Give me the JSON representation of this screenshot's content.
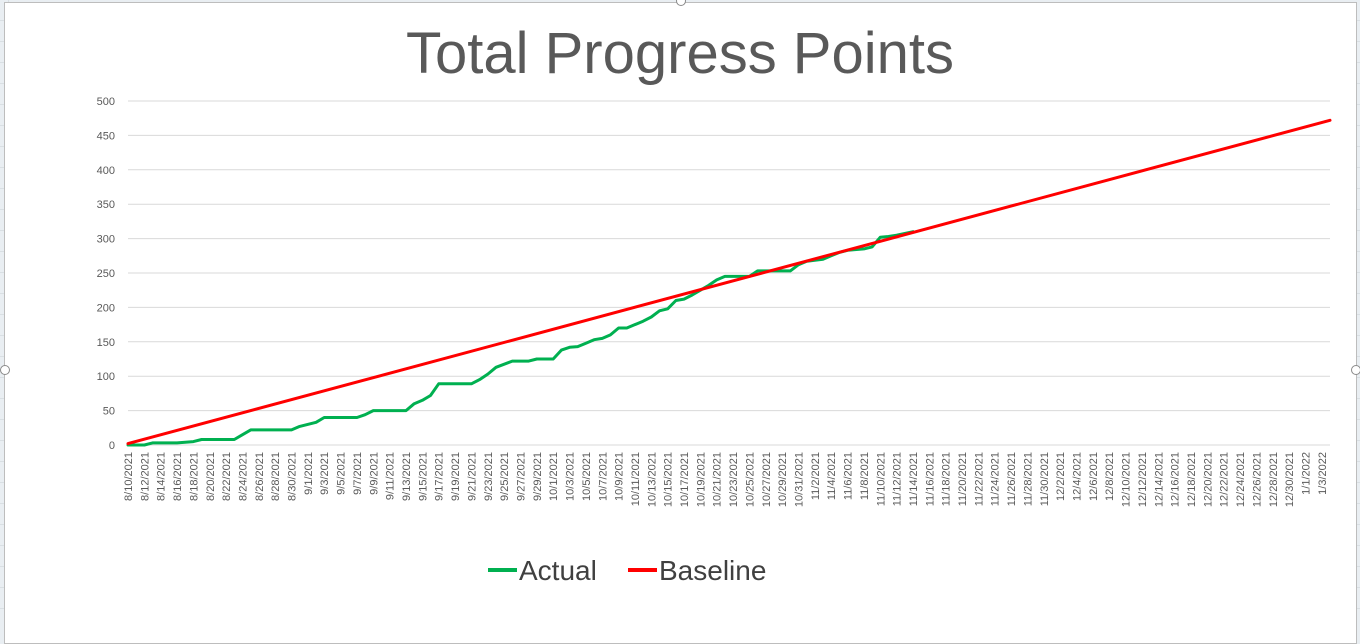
{
  "chart_data": {
    "type": "line",
    "title": "Total Progress Points",
    "xlabel": "",
    "ylabel": "",
    "ylim": [
      0,
      500
    ],
    "yticks": [
      0,
      50,
      100,
      150,
      200,
      250,
      300,
      350,
      400,
      450,
      500
    ],
    "grid": true,
    "legend_position": "bottom",
    "x_start": "8/10/2021",
    "x_end": "1/4/2022",
    "x_tick_labels": [
      "8/10/2021",
      "8/12/2021",
      "8/14/2021",
      "8/16/2021",
      "8/18/2021",
      "8/20/2021",
      "8/22/2021",
      "8/24/2021",
      "8/26/2021",
      "8/28/2021",
      "8/30/2021",
      "9/1/2021",
      "9/3/2021",
      "9/5/2021",
      "9/7/2021",
      "9/9/2021",
      "9/11/2021",
      "9/13/2021",
      "9/15/2021",
      "9/17/2021",
      "9/19/2021",
      "9/21/2021",
      "9/23/2021",
      "9/25/2021",
      "9/27/2021",
      "9/29/2021",
      "10/1/2021",
      "10/3/2021",
      "10/5/2021",
      "10/7/2021",
      "10/9/2021",
      "10/11/2021",
      "10/13/2021",
      "10/15/2021",
      "10/17/2021",
      "10/19/2021",
      "10/21/2021",
      "10/23/2021",
      "10/25/2021",
      "10/27/2021",
      "10/29/2021",
      "10/31/2021",
      "11/2/2021",
      "11/4/2021",
      "11/6/2021",
      "11/8/2021",
      "11/10/2021",
      "11/12/2021",
      "11/14/2021",
      "11/16/2021",
      "11/18/2021",
      "11/20/2021",
      "11/22/2021",
      "11/24/2021",
      "11/26/2021",
      "11/28/2021",
      "11/30/2021",
      "12/2/2021",
      "12/4/2021",
      "12/6/2021",
      "12/8/2021",
      "12/10/2021",
      "12/12/2021",
      "12/14/2021",
      "12/16/2021",
      "12/18/2021",
      "12/20/2021",
      "12/22/2021",
      "12/24/2021",
      "12/26/2021",
      "12/28/2021",
      "12/30/2021",
      "1/1/2022",
      "1/3/2022"
    ],
    "series": [
      {
        "name": "Actual",
        "color": "#00b050",
        "points": [
          [
            "8/10/2021",
            0
          ],
          [
            "8/12/2021",
            0
          ],
          [
            "8/13/2021",
            3
          ],
          [
            "8/16/2021",
            3
          ],
          [
            "8/18/2021",
            5
          ],
          [
            "8/19/2021",
            8
          ],
          [
            "8/23/2021",
            8
          ],
          [
            "8/24/2021",
            15
          ],
          [
            "8/25/2021",
            22
          ],
          [
            "8/30/2021",
            22
          ],
          [
            "8/31/2021",
            27
          ],
          [
            "9/2/2021",
            33
          ],
          [
            "9/3/2021",
            40
          ],
          [
            "9/7/2021",
            40
          ],
          [
            "9/8/2021",
            44
          ],
          [
            "9/9/2021",
            50
          ],
          [
            "9/13/2021",
            50
          ],
          [
            "9/14/2021",
            60
          ],
          [
            "9/15/2021",
            65
          ],
          [
            "9/16/2021",
            72
          ],
          [
            "9/17/2021",
            89
          ],
          [
            "9/21/2021",
            89
          ],
          [
            "9/22/2021",
            95
          ],
          [
            "9/23/2021",
            103
          ],
          [
            "9/24/2021",
            113
          ],
          [
            "9/26/2021",
            122
          ],
          [
            "9/28/2021",
            122
          ],
          [
            "9/29/2021",
            125
          ],
          [
            "10/1/2021",
            125
          ],
          [
            "10/2/2021",
            138
          ],
          [
            "10/3/2021",
            142
          ],
          [
            "10/4/2021",
            143
          ],
          [
            "10/5/2021",
            148
          ],
          [
            "10/6/2021",
            153
          ],
          [
            "10/7/2021",
            155
          ],
          [
            "10/8/2021",
            160
          ],
          [
            "10/9/2021",
            170
          ],
          [
            "10/10/2021",
            170
          ],
          [
            "10/12/2021",
            180
          ],
          [
            "10/13/2021",
            186
          ],
          [
            "10/14/2021",
            195
          ],
          [
            "10/15/2021",
            198
          ],
          [
            "10/16/2021",
            210
          ],
          [
            "10/17/2021",
            212
          ],
          [
            "10/18/2021",
            218
          ],
          [
            "10/19/2021",
            225
          ],
          [
            "10/20/2021",
            232
          ],
          [
            "10/21/2021",
            240
          ],
          [
            "10/22/2021",
            245
          ],
          [
            "10/25/2021",
            245
          ],
          [
            "10/26/2021",
            253
          ],
          [
            "10/30/2021",
            253
          ],
          [
            "10/31/2021",
            262
          ],
          [
            "11/1/2021",
            267
          ],
          [
            "11/3/2021",
            270
          ],
          [
            "11/4/2021",
            275
          ],
          [
            "11/5/2021",
            280
          ],
          [
            "11/6/2021",
            283
          ],
          [
            "11/8/2021",
            285
          ],
          [
            "11/9/2021",
            288
          ],
          [
            "11/10/2021",
            302
          ],
          [
            "11/11/2021",
            303
          ],
          [
            "11/12/2021",
            305
          ],
          [
            "11/14/2021",
            310
          ]
        ]
      },
      {
        "name": "Baseline",
        "color": "#ff0000",
        "points": [
          [
            "8/10/2021",
            2
          ],
          [
            "1/4/2022",
            472
          ]
        ]
      }
    ]
  },
  "legend": {
    "actual_label": "Actual",
    "baseline_label": "Baseline"
  }
}
